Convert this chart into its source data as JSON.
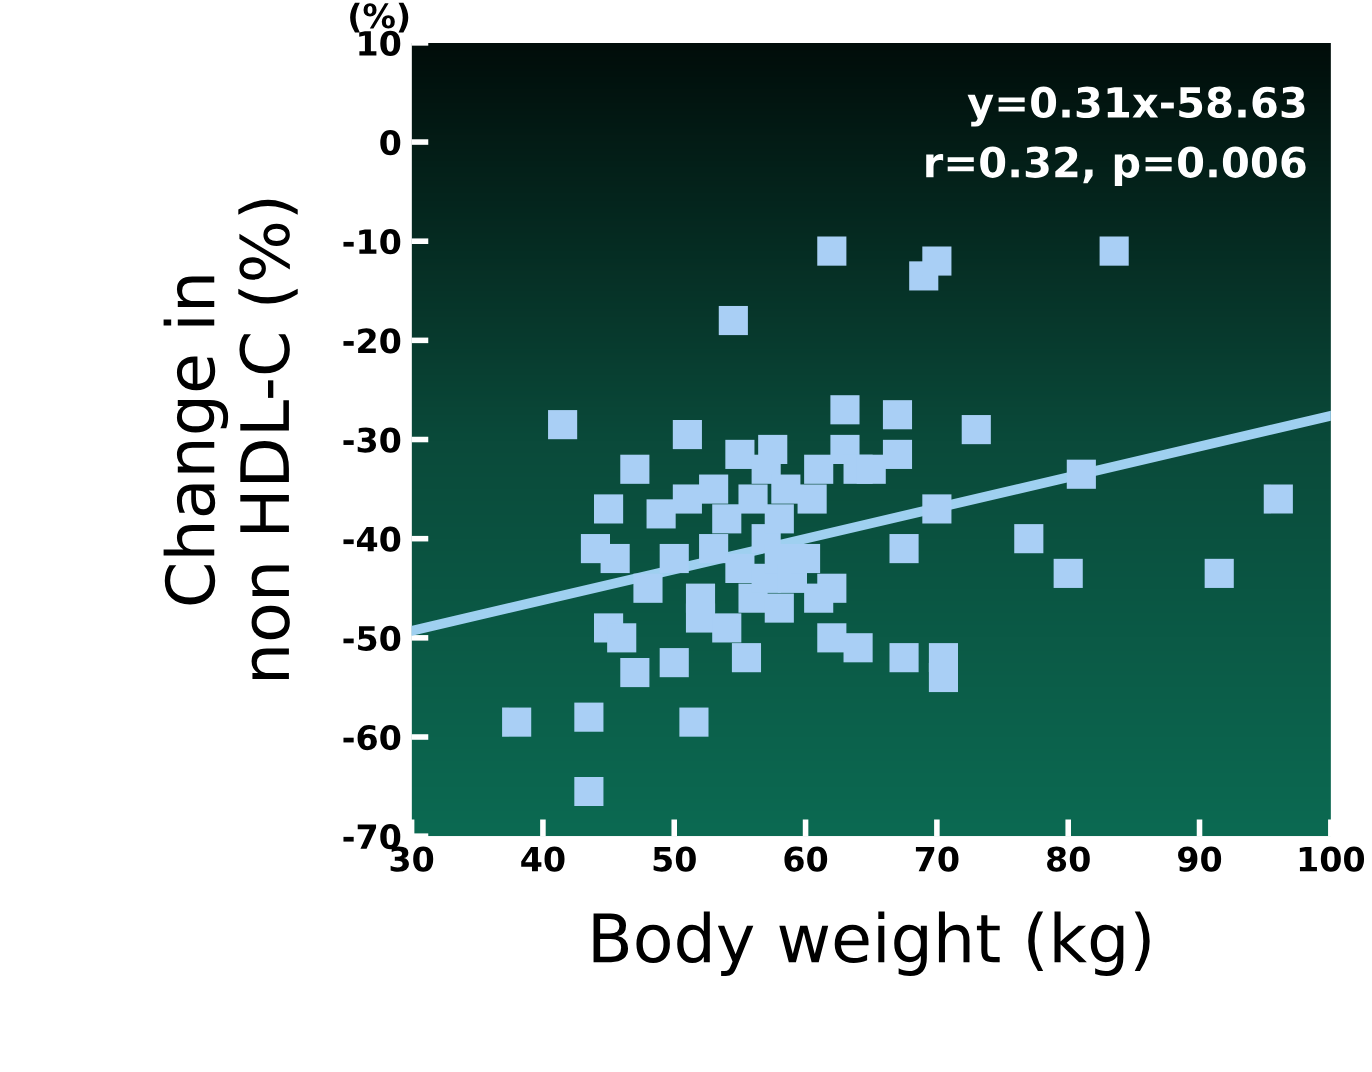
{
  "chart_data": {
    "type": "scatter",
    "xlabel": "Body weight (kg)",
    "ylabel": "Change in\nnon HDL-C (%)",
    "annotations": [
      "(%)",
      "y=0.31x-58.63",
      "r=0.32, p=0.006"
    ],
    "xlim": [
      30,
      100
    ],
    "xticks": [
      30,
      40,
      50,
      60,
      70,
      80,
      90,
      100
    ],
    "ylim": [
      -70,
      10
    ],
    "yticks": [
      -70,
      -60,
      -50,
      -40,
      -30,
      -20,
      -10,
      0,
      10
    ],
    "grid": false,
    "legend": false,
    "marker": "square",
    "series": [
      {
        "color": "#a9cff5",
        "x": [
          41.5,
          38,
          43.5,
          43.5,
          44,
          45,
          45.5,
          45,
          46,
          47,
          47,
          48,
          49,
          50,
          50,
          51,
          51,
          51.5,
          52,
          52,
          53,
          53,
          54,
          54,
          54.5,
          55,
          55,
          55.5,
          56,
          56,
          57,
          57,
          57,
          57.5,
          58,
          58,
          58,
          58.5,
          59,
          60,
          60.5,
          61,
          61,
          62,
          62,
          62,
          63,
          63,
          64,
          64,
          65,
          67,
          67,
          67.5,
          67.5,
          69,
          70,
          70,
          70.5,
          70.5,
          73,
          77,
          80,
          81,
          83.5,
          91.5,
          96
        ],
        "values": [
          -28.5,
          -58.5,
          -65.5,
          -58,
          -41,
          -37,
          -42,
          -49,
          -50,
          -53.5,
          -33,
          -45,
          -37.5,
          -52.5,
          -42,
          -36,
          -29.5,
          -58.5,
          -46,
          -48,
          -35,
          -41,
          -38,
          -49,
          -18,
          -31.5,
          -43,
          -52,
          -46,
          -36,
          -33,
          -44,
          -40,
          -31,
          -38,
          -47,
          -42,
          -35,
          -44,
          -42,
          -36,
          -46,
          -33,
          -11,
          -45,
          -50,
          -27,
          -31,
          -51,
          -33,
          -33,
          -27.5,
          -31.5,
          -41,
          -52,
          -13.5,
          -12,
          -37,
          -52,
          -54,
          -29,
          -40,
          -43.5,
          -33.5,
          -11,
          -43.5,
          -36
        ]
      },
      {
        "type": "line",
        "color": "#9fd0f0",
        "line_style": "solid",
        "marker": "none",
        "x": [
          30,
          100
        ],
        "values": [
          -49.3,
          -27.6
        ]
      }
    ]
  }
}
